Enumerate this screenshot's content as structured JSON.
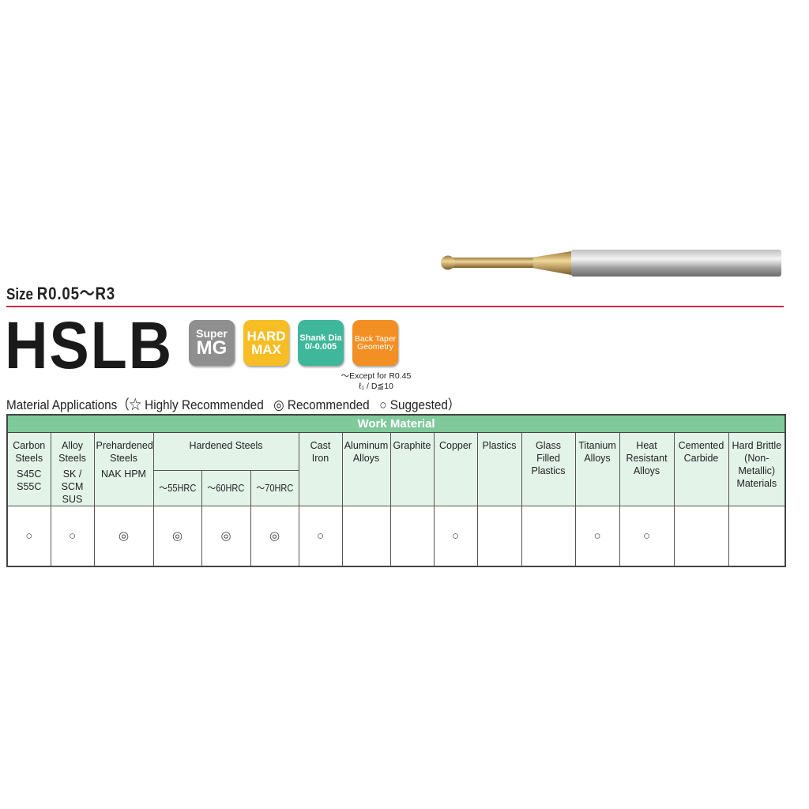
{
  "header": {
    "size_label": "Size",
    "size_value": "R0.05～R3",
    "product_name": "HSLB"
  },
  "badges": [
    {
      "line1": "Super",
      "line2": "MG",
      "color": "#8f8f8f"
    },
    {
      "line1": "HARD",
      "line2": "MAX",
      "color": "#f6bd25"
    },
    {
      "line1": "Shank Dia",
      "line2": "0/-0.005",
      "color": "#3fb79a"
    },
    {
      "line1": "Back Taper",
      "line2": "Geometry",
      "color": "#f39024"
    }
  ],
  "badge_note": {
    "line1": "～Except for R0.45",
    "line2": "ℓ₁ / D≦10"
  },
  "legend": {
    "title": "Material Applications（",
    "highly": "☆ Highly Recommended",
    "recommended": "◎ Recommended",
    "suggested": "○ Suggested）"
  },
  "table": {
    "group_header": "Work Material",
    "hardened_header": "Hardened Steels",
    "columns": [
      {
        "name": "Carbon Steels",
        "sub": "S45C S55C",
        "mark": "○"
      },
      {
        "name": "Alloy Steels",
        "sub": "SK / SCM SUS",
        "mark": "○"
      },
      {
        "name": "Prehardened Steels",
        "sub": "NAK HPM",
        "mark": "◎"
      },
      {
        "name": "～55HRC",
        "mark": "◎"
      },
      {
        "name": "～60HRC",
        "mark": "◎"
      },
      {
        "name": "～70HRC",
        "mark": "◎"
      },
      {
        "name": "Cast Iron",
        "mark": "○"
      },
      {
        "name": "Aluminum Alloys",
        "mark": ""
      },
      {
        "name": "Graphite",
        "mark": ""
      },
      {
        "name": "Copper",
        "mark": "○"
      },
      {
        "name": "Plastics",
        "mark": ""
      },
      {
        "name": "Glass Filled Plastics",
        "mark": ""
      },
      {
        "name": "Titanium Alloys",
        "mark": "○"
      },
      {
        "name": "Heat Resistant Alloys",
        "mark": "○"
      },
      {
        "name": "Cemented Carbide",
        "mark": ""
      },
      {
        "name": "Hard Brittle (Non-Metallic) Materials",
        "mark": ""
      }
    ]
  },
  "colors": {
    "accent_line": "#d7263d",
    "table_header": "#7fc99b",
    "header_cells": "#e3f3e8"
  }
}
